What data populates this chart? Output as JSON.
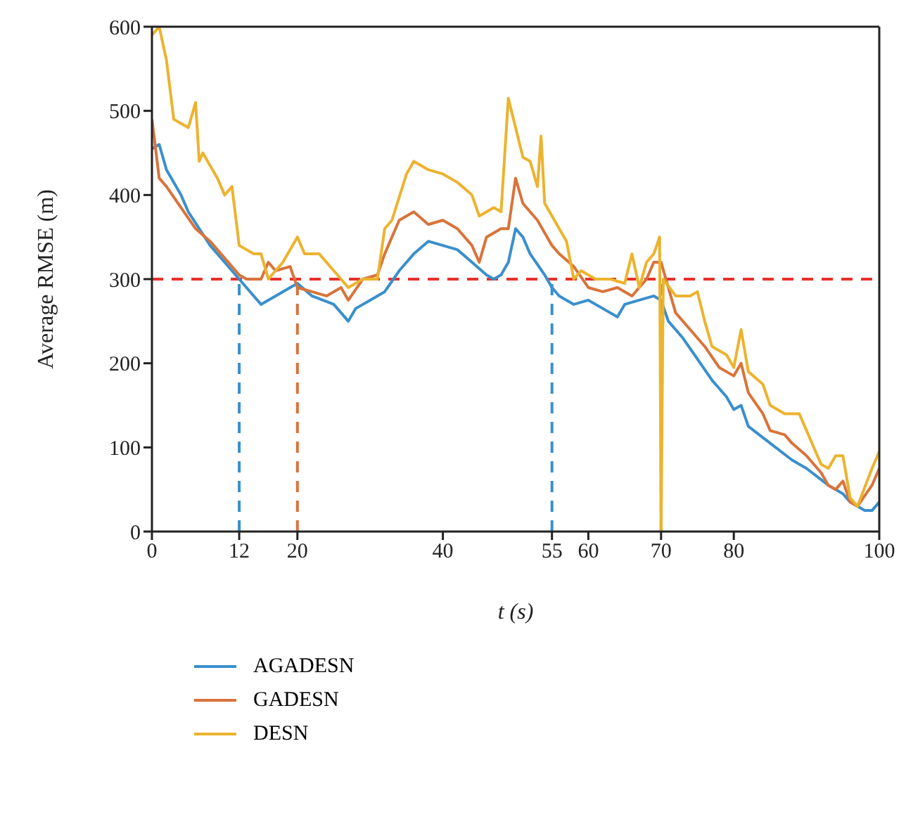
{
  "chart_data": {
    "type": "line",
    "xlabel": "t (s)",
    "ylabel": "Average RMSE (m)",
    "xlim": [
      0,
      100
    ],
    "xticks": [
      0,
      12,
      20,
      40,
      55,
      60,
      70,
      80,
      100
    ],
    "ylim": [
      0,
      600
    ],
    "yticks": [
      0,
      100,
      200,
      300,
      400,
      500,
      600
    ],
    "legend": "bottom",
    "marker": "none",
    "line_style": "solid",
    "ref_lines": [
      {
        "axis": "y",
        "value": 300,
        "color": "#e8302a",
        "line_style": "dashed"
      },
      {
        "axis": "x",
        "value": 12,
        "color": "#3a8fcc",
        "line_style": "dashed"
      },
      {
        "axis": "x",
        "value": 20,
        "color": "#d9733a",
        "line_style": "dashed"
      },
      {
        "axis": "x",
        "value": 55,
        "color": "#3a8fcc",
        "line_style": "dashed"
      },
      {
        "axis": "x",
        "value": 70,
        "color": "#d9733a",
        "line_style": "dashed"
      }
    ],
    "series": [
      {
        "name": "AGADESN",
        "color": "#3a8fcc",
        "x": [
          0,
          1,
          2,
          4,
          5,
          8,
          10,
          12,
          14,
          15,
          18,
          20,
          22,
          25,
          27,
          28,
          30,
          32,
          34,
          36,
          38,
          40,
          42,
          44,
          46,
          47,
          48,
          49,
          50,
          51,
          52,
          54,
          55,
          56,
          58,
          60,
          62,
          64,
          65,
          67,
          69,
          70,
          71,
          73,
          75,
          77,
          79,
          80,
          81,
          82,
          85,
          88,
          90,
          93,
          95,
          96,
          97,
          98,
          99,
          100
        ],
        "values": [
          455,
          460,
          430,
          400,
          380,
          340,
          320,
          300,
          280,
          270,
          285,
          295,
          280,
          270,
          250,
          265,
          275,
          285,
          310,
          330,
          345,
          340,
          335,
          320,
          305,
          300,
          305,
          320,
          360,
          350,
          330,
          305,
          290,
          280,
          270,
          275,
          265,
          255,
          270,
          275,
          280,
          275,
          250,
          230,
          205,
          180,
          160,
          145,
          150,
          125,
          105,
          85,
          75,
          55,
          45,
          35,
          30,
          25,
          25,
          35
        ]
      },
      {
        "name": "GADESN",
        "color": "#d9733a",
        "x": [
          0,
          1,
          2,
          4,
          6,
          8,
          10,
          12,
          13,
          15,
          16,
          17,
          19,
          20,
          22,
          24,
          26,
          27,
          29,
          31,
          32,
          34,
          36,
          38,
          40,
          42,
          44,
          45,
          46,
          48,
          49,
          50,
          51,
          53,
          55,
          56,
          58,
          60,
          62,
          64,
          66,
          68,
          69,
          70,
          72,
          74,
          76,
          78,
          80,
          81,
          82,
          84,
          85,
          87,
          88,
          90,
          92,
          93,
          94,
          95,
          96,
          97,
          99,
          100
        ],
        "values": [
          490,
          420,
          410,
          385,
          360,
          345,
          325,
          305,
          300,
          300,
          320,
          310,
          315,
          290,
          285,
          280,
          290,
          275,
          300,
          305,
          330,
          370,
          380,
          365,
          370,
          360,
          340,
          320,
          350,
          360,
          360,
          420,
          390,
          370,
          340,
          330,
          315,
          290,
          285,
          290,
          280,
          300,
          320,
          320,
          260,
          240,
          220,
          195,
          185,
          200,
          165,
          140,
          120,
          115,
          105,
          90,
          70,
          55,
          50,
          60,
          35,
          30,
          55,
          75
        ]
      },
      {
        "name": "DESN",
        "color": "#ecb32e",
        "x": [
          0,
          1,
          2,
          3,
          5,
          6,
          6.5,
          7,
          9,
          10,
          11,
          12,
          14,
          15,
          16,
          18,
          20,
          21,
          23,
          25,
          27,
          29,
          31,
          32,
          33,
          35,
          36,
          38,
          40,
          42,
          44,
          45,
          47,
          48,
          49,
          50,
          51,
          52,
          53,
          53.5,
          54,
          56,
          57,
          58,
          59,
          61,
          63,
          65,
          66,
          67,
          68,
          69,
          69.8,
          70,
          70.3,
          72,
          74,
          75,
          76,
          77,
          79,
          80,
          81,
          82,
          84,
          85,
          87,
          89,
          90,
          92,
          93,
          94,
          95,
          96,
          97,
          99,
          100
        ],
        "values": [
          590,
          600,
          560,
          490,
          480,
          510,
          440,
          450,
          420,
          400,
          410,
          340,
          330,
          330,
          300,
          320,
          350,
          330,
          330,
          310,
          290,
          300,
          300,
          360,
          370,
          425,
          440,
          430,
          425,
          415,
          400,
          375,
          385,
          380,
          515,
          480,
          445,
          440,
          410,
          470,
          390,
          360,
          345,
          300,
          310,
          300,
          300,
          295,
          330,
          290,
          320,
          330,
          350,
          0,
          300,
          280,
          280,
          285,
          250,
          220,
          210,
          195,
          240,
          190,
          175,
          150,
          140,
          140,
          120,
          80,
          75,
          90,
          90,
          40,
          30,
          75,
          95
        ]
      }
    ]
  }
}
